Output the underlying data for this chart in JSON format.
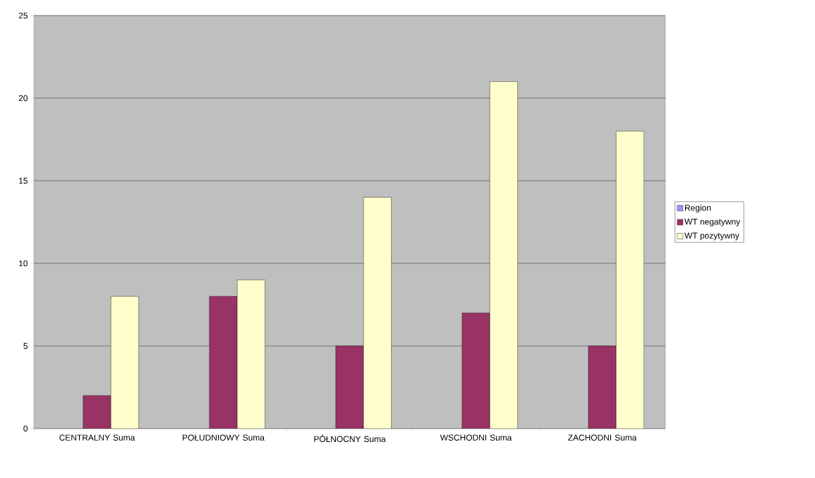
{
  "chart_data": {
    "type": "bar",
    "categories": [
      "CENTRALNY Suma",
      "POŁUDNIOWY Suma",
      "PÓŁNOCNY Suma",
      "WSCHODNI Suma",
      "ZACHODNI Suma"
    ],
    "series": [
      {
        "name": "Region",
        "color": "#9999ff",
        "values": [
          null,
          null,
          null,
          null,
          null
        ]
      },
      {
        "name": "WT negatywny",
        "color": "#993366",
        "values": [
          2,
          8,
          5,
          7,
          5
        ]
      },
      {
        "name": "WT pozytywny",
        "color": "#ffffcc",
        "values": [
          8,
          9,
          14,
          21,
          18
        ]
      }
    ],
    "ylim": [
      0,
      25
    ],
    "yticks": [
      0,
      5,
      10,
      15,
      20,
      25
    ],
    "grid": "y",
    "legend": "right"
  }
}
